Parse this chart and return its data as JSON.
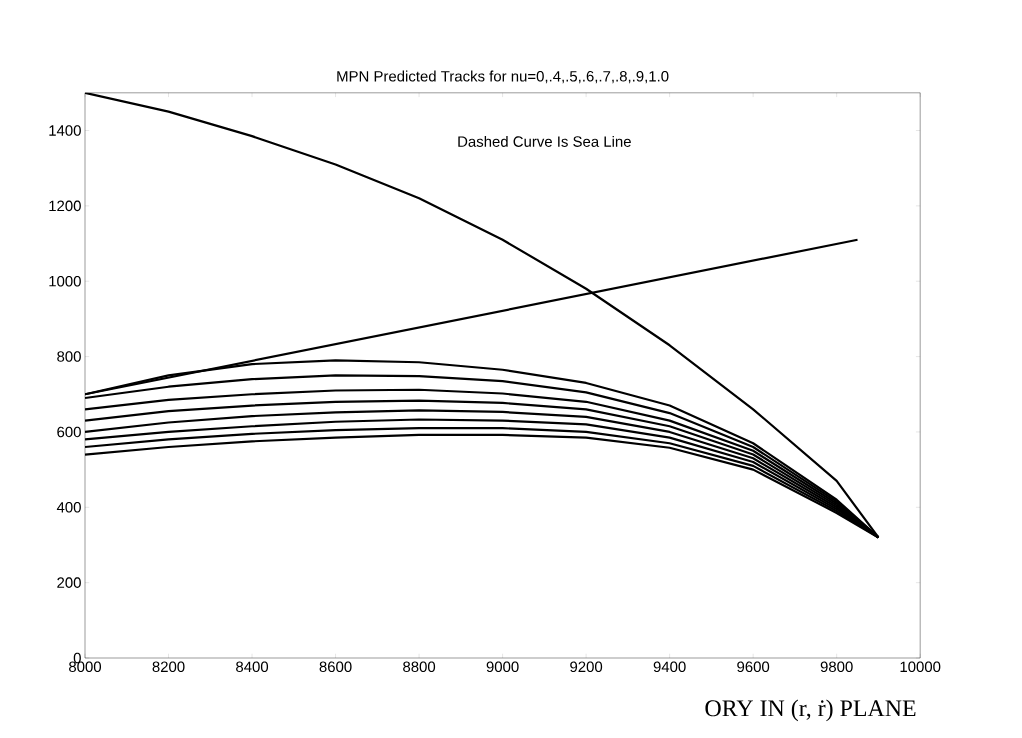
{
  "chart_data": {
    "type": "line",
    "title": "MPN Predicted Tracks for nu=0,.4,.5,.6,.7,.8,.9,1.0",
    "annotations": [
      "Dashed Curve Is Sea Line",
      "ORY IN (r, ṙ) PLANE"
    ],
    "xlim": [
      8000,
      10000
    ],
    "ylim": [
      0,
      1500
    ],
    "xticks": [
      8000,
      8200,
      8400,
      8600,
      8800,
      9000,
      9200,
      9400,
      9600,
      9800,
      10000
    ],
    "yticks": [
      0,
      200,
      400,
      600,
      800,
      1000,
      1200,
      1400
    ],
    "grid": false,
    "marker": "none",
    "line_style": "solid",
    "series": [
      {
        "color": "#000000",
        "x": [
          8000,
          8200,
          8400,
          8600,
          8800,
          9000,
          9200,
          9400,
          9600,
          9800,
          9900
        ],
        "values": [
          1500,
          1450,
          1385,
          1310,
          1220,
          1110,
          980,
          830,
          660,
          470,
          320
        ]
      },
      {
        "color": "#000000",
        "x": [
          8000,
          9850
        ],
        "values": [
          700,
          1110
        ]
      },
      {
        "color": "#000000",
        "x": [
          8000,
          8200,
          8400,
          8600,
          8800,
          9000,
          9200,
          9400,
          9600,
          9800,
          9900
        ],
        "values": [
          700,
          750,
          780,
          790,
          785,
          765,
          730,
          670,
          570,
          420,
          320
        ]
      },
      {
        "color": "#000000",
        "x": [
          8000,
          8200,
          8400,
          8600,
          8800,
          9000,
          9200,
          9400,
          9600,
          9800,
          9900
        ],
        "values": [
          690,
          720,
          740,
          750,
          748,
          735,
          705,
          650,
          560,
          415,
          320
        ]
      },
      {
        "color": "#000000",
        "x": [
          8000,
          8200,
          8400,
          8600,
          8800,
          9000,
          9200,
          9400,
          9600,
          9800,
          9900
        ],
        "values": [
          660,
          685,
          700,
          710,
          712,
          702,
          680,
          630,
          550,
          410,
          320
        ]
      },
      {
        "color": "#000000",
        "x": [
          8000,
          8200,
          8400,
          8600,
          8800,
          9000,
          9200,
          9400,
          9600,
          9800,
          9900
        ],
        "values": [
          630,
          655,
          670,
          680,
          683,
          677,
          660,
          615,
          540,
          405,
          320
        ]
      },
      {
        "color": "#000000",
        "x": [
          8000,
          8200,
          8400,
          8600,
          8800,
          9000,
          9200,
          9400,
          9600,
          9800,
          9900
        ],
        "values": [
          600,
          625,
          642,
          652,
          657,
          653,
          640,
          600,
          530,
          400,
          320
        ]
      },
      {
        "color": "#000000",
        "x": [
          8000,
          8200,
          8400,
          8600,
          8800,
          9000,
          9200,
          9400,
          9600,
          9800,
          9900
        ],
        "values": [
          580,
          600,
          615,
          627,
          633,
          630,
          620,
          585,
          520,
          395,
          320
        ]
      },
      {
        "color": "#000000",
        "x": [
          8000,
          8200,
          8400,
          8600,
          8800,
          9000,
          9200,
          9400,
          9600,
          9800,
          9900
        ],
        "values": [
          560,
          580,
          595,
          605,
          610,
          610,
          600,
          570,
          510,
          390,
          320
        ]
      },
      {
        "color": "#000000",
        "x": [
          8000,
          8200,
          8400,
          8600,
          8800,
          9000,
          9200,
          9400,
          9600,
          9800,
          9900
        ],
        "values": [
          540,
          560,
          575,
          585,
          592,
          592,
          585,
          558,
          500,
          385,
          320
        ]
      }
    ]
  }
}
